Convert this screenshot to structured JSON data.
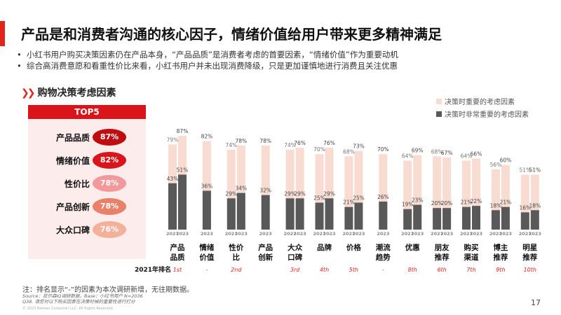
{
  "header": {
    "title": "产品是和消费者沟通的核心因子，情绪价值给用户带来更多精神满足",
    "bullets": [
      "小红书用户购买决策因素仍在产品本身，“产品品质”是消费者考虑的首要因素，“情绪价值”作为重要动机",
      "综合高消费意愿和看重性价比来看，小红书用户并未出现消费降级，只是更加谨慎地进行消费且关注优惠"
    ]
  },
  "section": {
    "title": "购物决策考虑因素"
  },
  "top5": {
    "title": "TOP5",
    "items": [
      {
        "label": "产品品质",
        "value": "87%",
        "color": "#c00d12"
      },
      {
        "label": "情绪价值",
        "value": "82%",
        "color": "#d9141b"
      },
      {
        "label": "性价比",
        "value": "78%",
        "color": "#f3999c"
      },
      {
        "label": "产品创新",
        "value": "78%",
        "color": "#e8806a"
      },
      {
        "label": "大众口碑",
        "value": "76%",
        "color": "#f3b09a"
      }
    ]
  },
  "chart_data": {
    "type": "bar",
    "stacked_overlay": true,
    "ylim": [
      0,
      100
    ],
    "grid": false,
    "legend_position": "top-right",
    "series": [
      {
        "name": "决策时重要的考虑因素",
        "color": "#f8dcd2"
      },
      {
        "name": "决策时非常重要的考虑因素",
        "color": "#595959"
      }
    ],
    "rank_label": "2021年排名",
    "categories": [
      {
        "name": "产品品质",
        "rank": "1st",
        "bars": [
          {
            "year": "2021",
            "important": 79,
            "very": 43
          },
          {
            "year": "2023",
            "important": 87,
            "very": 51
          }
        ]
      },
      {
        "name": "情绪价值",
        "rank": "-",
        "bars": [
          {
            "year": "2023",
            "important": 82,
            "very": 36
          }
        ]
      },
      {
        "name": "性价比",
        "rank": "2nd",
        "bars": [
          {
            "year": "2021",
            "important": 74,
            "very": 29
          },
          {
            "year": "2023",
            "important": 78,
            "very": 34
          }
        ]
      },
      {
        "name": "产品创新",
        "rank": "",
        "bars": [
          {
            "year": "2023",
            "important": 78,
            "very": 32
          }
        ]
      },
      {
        "name": "大众口碑",
        "rank": "3rd",
        "bars": [
          {
            "year": "2021",
            "important": 74,
            "very": 29
          },
          {
            "year": "2023",
            "important": 76,
            "very": 29
          }
        ]
      },
      {
        "name": "品牌",
        "rank": "4th",
        "bars": [
          {
            "year": "2021",
            "important": 70,
            "very": 25
          },
          {
            "year": "2023",
            "important": 76,
            "very": 29
          }
        ]
      },
      {
        "name": "价格",
        "rank": "5th",
        "bars": [
          {
            "year": "2021",
            "important": 68,
            "very": 21
          },
          {
            "year": "2023",
            "important": 73,
            "very": 25
          }
        ]
      },
      {
        "name": "潮流趋势",
        "rank": "-",
        "bars": [
          {
            "year": "2023",
            "important": 70,
            "very": 26
          }
        ]
      },
      {
        "name": "优惠",
        "rank": "8th",
        "bars": [
          {
            "year": "2021",
            "important": 64,
            "very": 19
          },
          {
            "year": "2023",
            "important": 69,
            "very": 23
          }
        ]
      },
      {
        "name": "朋友推荐",
        "rank": "6th",
        "bars": [
          {
            "year": "2021",
            "important": 68,
            "very": 20
          },
          {
            "year": "2023",
            "important": 67,
            "very": 20
          }
        ]
      },
      {
        "name": "购买渠道",
        "rank": "7th",
        "bars": [
          {
            "year": "2021",
            "important": 64,
            "very": 21
          },
          {
            "year": "2023",
            "important": 66,
            "very": 22
          }
        ]
      },
      {
        "name": "博主推荐",
        "rank": "9th",
        "bars": [
          {
            "year": "2021",
            "important": 56,
            "very": 18
          },
          {
            "year": "2023",
            "important": 60,
            "very": 21
          }
        ]
      },
      {
        "name": "明星推荐",
        "rank": "10th",
        "bars": [
          {
            "year": "2021",
            "important": 51,
            "very": 16
          },
          {
            "year": "2023",
            "important": 51,
            "very": 18
          }
        ]
      }
    ]
  },
  "footer": {
    "note": "注：排名显示“-”的因素为本次调研新增，无往期数据。",
    "source": "Source：尼尔森IQ调研数据，Base：小红书用户 N=2036",
    "question": "Q38. 请您对以下购买因素在决策时候的重要性进行打分",
    "copyright": "© 2023 Nielsen Consumer LLC. All Rights Reserved.",
    "page": "17"
  }
}
